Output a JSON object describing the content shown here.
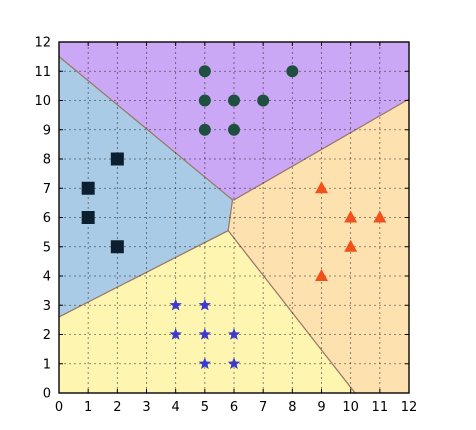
{
  "chart_data": {
    "type": "scatter",
    "title": "",
    "xlabel": "",
    "ylabel": "",
    "xlim": [
      0,
      12
    ],
    "ylim": [
      0,
      12
    ],
    "xticks": [
      "0",
      "1",
      "2",
      "3",
      "4",
      "5",
      "6",
      "7",
      "8",
      "9",
      "10",
      "11",
      "12"
    ],
    "yticks": [
      "0",
      "1",
      "2",
      "3",
      "4",
      "5",
      "6",
      "7",
      "8",
      "9",
      "10",
      "11",
      "12"
    ],
    "grid": true,
    "regions": [
      {
        "color": "#cba8f5",
        "polygon": [
          [
            0,
            11.5
          ],
          [
            0,
            12
          ],
          [
            12,
            12
          ],
          [
            12,
            10.05
          ],
          [
            6,
            6.6
          ],
          [
            5.95,
            6.6
          ]
        ]
      },
      {
        "color": "#aacbe6",
        "polygon": [
          [
            0,
            2.6
          ],
          [
            0,
            11.5
          ],
          [
            5.95,
            6.6
          ],
          [
            5.8,
            5.55
          ]
        ]
      },
      {
        "color": "#fde2b0",
        "polygon": [
          [
            5.8,
            5.55
          ],
          [
            5.95,
            6.6
          ],
          [
            6,
            6.6
          ],
          [
            12,
            10.05
          ],
          [
            12,
            0
          ],
          [
            10.15,
            0
          ]
        ]
      },
      {
        "color": "#fdf5b0",
        "polygon": [
          [
            0,
            0
          ],
          [
            0,
            2.6
          ],
          [
            5.8,
            5.55
          ],
          [
            10.15,
            0
          ]
        ]
      }
    ],
    "series": [
      {
        "marker": "square",
        "color": "#0b1f2f",
        "x": [
          1,
          1,
          2,
          2
        ],
        "y": [
          7,
          6,
          8,
          5
        ]
      },
      {
        "marker": "circle",
        "color": "#1f4f3f",
        "x": [
          5,
          8,
          5,
          6,
          7,
          5,
          6
        ],
        "y": [
          11,
          11,
          10,
          10,
          10,
          9,
          9
        ]
      },
      {
        "marker": "triangle",
        "color": "#f2511b",
        "x": [
          9,
          10,
          11,
          10,
          9
        ],
        "y": [
          7,
          6,
          6,
          5,
          4
        ]
      },
      {
        "marker": "star",
        "color": "#3a3ad0",
        "x": [
          4,
          5,
          4,
          5,
          6,
          5,
          6
        ],
        "y": [
          3,
          3,
          2,
          2,
          2,
          1,
          1
        ]
      }
    ]
  }
}
